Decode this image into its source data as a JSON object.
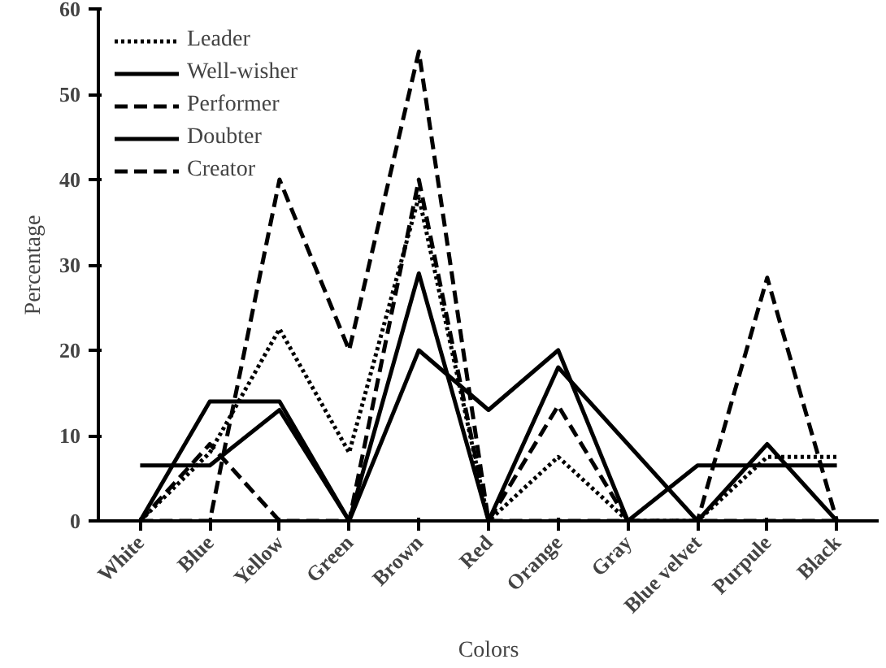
{
  "chart_data": {
    "type": "line",
    "xlabel": "Colors",
    "ylabel": "Percentage",
    "categories": [
      "White",
      "Blue",
      "Yellow",
      "Green",
      "Brown",
      "Red",
      "Orange",
      "Gray",
      "Blue velvet",
      "Purpule",
      "Black"
    ],
    "series": [
      {
        "name": "Leader",
        "color": "#000000",
        "line_style": "dotted",
        "values": [
          0,
          8,
          22.5,
          8,
          38,
          0,
          7.5,
          0,
          0,
          7.5,
          7.5
        ]
      },
      {
        "name": "Well-wisher",
        "color": "#000000",
        "line_style": "solid",
        "values": [
          6.5,
          6.5,
          13,
          0,
          20,
          13,
          20,
          0,
          6.5,
          6.5,
          6.5
        ]
      },
      {
        "name": "Performer",
        "color": "#000000",
        "line_style": "dashed",
        "values": [
          0,
          9,
          0,
          0,
          40,
          0,
          13.5,
          0,
          0,
          28.5,
          0
        ]
      },
      {
        "name": "Doubter",
        "color": "#000000",
        "line_style": "solid",
        "values": [
          0,
          14,
          14,
          0,
          29,
          0,
          18,
          9,
          0,
          9,
          0
        ]
      },
      {
        "name": "Creator",
        "color": "#000000",
        "line_style": "dashed",
        "values": [
          0,
          0,
          40,
          20,
          55,
          0,
          0,
          0,
          0,
          0,
          0
        ]
      }
    ],
    "ylim": [
      0,
      60
    ],
    "yticks": [
      0,
      10,
      20,
      30,
      40,
      50,
      60
    ],
    "grid": false,
    "legend": "top left"
  }
}
